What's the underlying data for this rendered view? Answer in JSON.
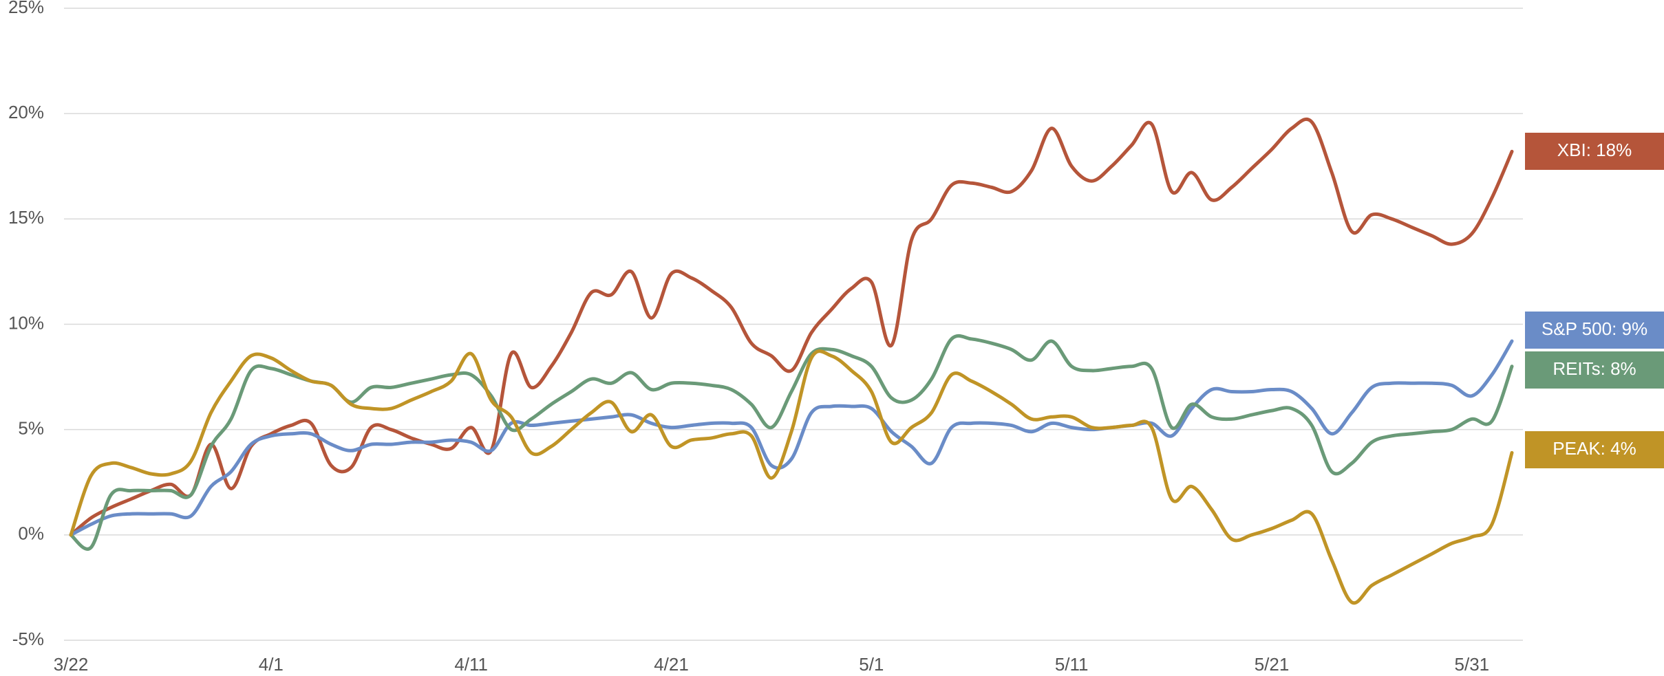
{
  "chart_data": {
    "type": "line",
    "categories": [
      "3/22",
      null,
      null,
      null,
      null,
      null,
      null,
      null,
      null,
      null,
      "4/1",
      null,
      null,
      null,
      null,
      null,
      null,
      null,
      null,
      null,
      "4/11",
      null,
      null,
      null,
      null,
      null,
      null,
      null,
      null,
      null,
      "4/21",
      null,
      null,
      null,
      null,
      null,
      null,
      null,
      null,
      null,
      "5/1",
      null,
      null,
      null,
      null,
      null,
      null,
      null,
      null,
      null,
      "5/11",
      null,
      null,
      null,
      null,
      null,
      null,
      null,
      null,
      null,
      "5/21",
      null,
      null,
      null,
      null,
      null,
      null,
      null,
      null,
      null,
      "5/31",
      null,
      null
    ],
    "ylim": [
      -5,
      25
    ],
    "yticks": [
      {
        "value": -5,
        "label": "-5%"
      },
      {
        "value": 0,
        "label": "0%"
      },
      {
        "value": 5,
        "label": "5%"
      },
      {
        "value": 10,
        "label": "10%"
      },
      {
        "value": 15,
        "label": "15%"
      },
      {
        "value": 20,
        "label": "20%"
      },
      {
        "value": 25,
        "label": "25%"
      }
    ],
    "grid": true,
    "series": [
      {
        "name": "XBI: 18%",
        "color": "#b5553a",
        "values": [
          0,
          0.8,
          1.3,
          1.7,
          2.1,
          2.4,
          1.9,
          4.3,
          2.2,
          4.2,
          4.8,
          5.2,
          5.3,
          3.3,
          3.2,
          5.1,
          5.0,
          4.6,
          4.3,
          4.1,
          5.1,
          4.0,
          8.6,
          7.0,
          8.0,
          9.6,
          11.5,
          11.4,
          12.5,
          10.3,
          12.4,
          12.2,
          11.6,
          10.8,
          9.1,
          8.5,
          7.8,
          9.6,
          10.7,
          11.7,
          12.0,
          9.0,
          14.0,
          15.0,
          16.6,
          16.7,
          16.5,
          16.3,
          17.3,
          19.3,
          17.5,
          16.8,
          17.5,
          18.5,
          19.5,
          16.3,
          17.2,
          15.9,
          16.5,
          17.4,
          18.3,
          19.3,
          19.6,
          17.2,
          14.4,
          15.2,
          15.0,
          14.6,
          14.2,
          13.8,
          14.3,
          16.0,
          18.2
        ]
      },
      {
        "name": "S&P 500: 9%",
        "color": "#6a8cc7",
        "values": [
          0,
          0.5,
          0.9,
          1.0,
          1.0,
          1.0,
          0.9,
          2.3,
          3.0,
          4.3,
          4.7,
          4.8,
          4.8,
          4.3,
          4.0,
          4.3,
          4.3,
          4.4,
          4.4,
          4.5,
          4.4,
          4.0,
          5.3,
          5.2,
          5.3,
          5.4,
          5.5,
          5.6,
          5.7,
          5.3,
          5.1,
          5.2,
          5.3,
          5.3,
          5.1,
          3.3,
          3.6,
          5.8,
          6.1,
          6.1,
          6.0,
          4.9,
          4.2,
          3.4,
          5.1,
          5.3,
          5.3,
          5.2,
          4.9,
          5.3,
          5.1,
          5.0,
          5.1,
          5.2,
          5.3,
          4.7,
          6.0,
          6.9,
          6.8,
          6.8,
          6.9,
          6.8,
          6.0,
          4.8,
          5.8,
          7.0,
          7.2,
          7.2,
          7.2,
          7.1,
          6.6,
          7.6,
          9.2
        ]
      },
      {
        "name": "REITs: 8%",
        "color": "#6a9a78",
        "values": [
          0,
          -0.6,
          1.9,
          2.1,
          2.1,
          2.1,
          1.9,
          4.2,
          5.5,
          7.8,
          7.9,
          7.6,
          7.3,
          7.1,
          6.3,
          7.0,
          7.0,
          7.2,
          7.4,
          7.6,
          7.6,
          6.6,
          5.0,
          5.5,
          6.2,
          6.8,
          7.4,
          7.2,
          7.7,
          6.9,
          7.2,
          7.2,
          7.1,
          6.9,
          6.2,
          5.1,
          6.8,
          8.6,
          8.8,
          8.5,
          8.0,
          6.5,
          6.4,
          7.4,
          9.3,
          9.3,
          9.1,
          8.8,
          8.3,
          9.2,
          8.0,
          7.8,
          7.9,
          8.0,
          7.9,
          5.1,
          6.2,
          5.6,
          5.5,
          5.7,
          5.9,
          6.0,
          5.2,
          3.0,
          3.4,
          4.4,
          4.7,
          4.8,
          4.9,
          5.0,
          5.5,
          5.4,
          8.0
        ]
      },
      {
        "name": "PEAK: 4%",
        "color": "#c09426",
        "values": [
          0,
          2.8,
          3.4,
          3.2,
          2.9,
          2.9,
          3.5,
          5.8,
          7.3,
          8.5,
          8.4,
          7.8,
          7.3,
          7.1,
          6.2,
          6.0,
          6.0,
          6.4,
          6.8,
          7.3,
          8.6,
          6.4,
          5.6,
          3.9,
          4.2,
          5.0,
          5.8,
          6.3,
          4.9,
          5.7,
          4.2,
          4.5,
          4.6,
          4.8,
          4.7,
          2.7,
          4.9,
          8.4,
          8.5,
          7.8,
          6.8,
          4.4,
          5.1,
          5.8,
          7.6,
          7.3,
          6.8,
          6.2,
          5.5,
          5.6,
          5.6,
          5.1,
          5.1,
          5.2,
          5.1,
          1.7,
          2.3,
          1.2,
          -0.2,
          0.0,
          0.3,
          0.7,
          1.0,
          -1.2,
          -3.2,
          -2.4,
          -1.9,
          -1.4,
          -0.9,
          -0.4,
          -0.1,
          0.5,
          3.9
        ]
      }
    ]
  }
}
